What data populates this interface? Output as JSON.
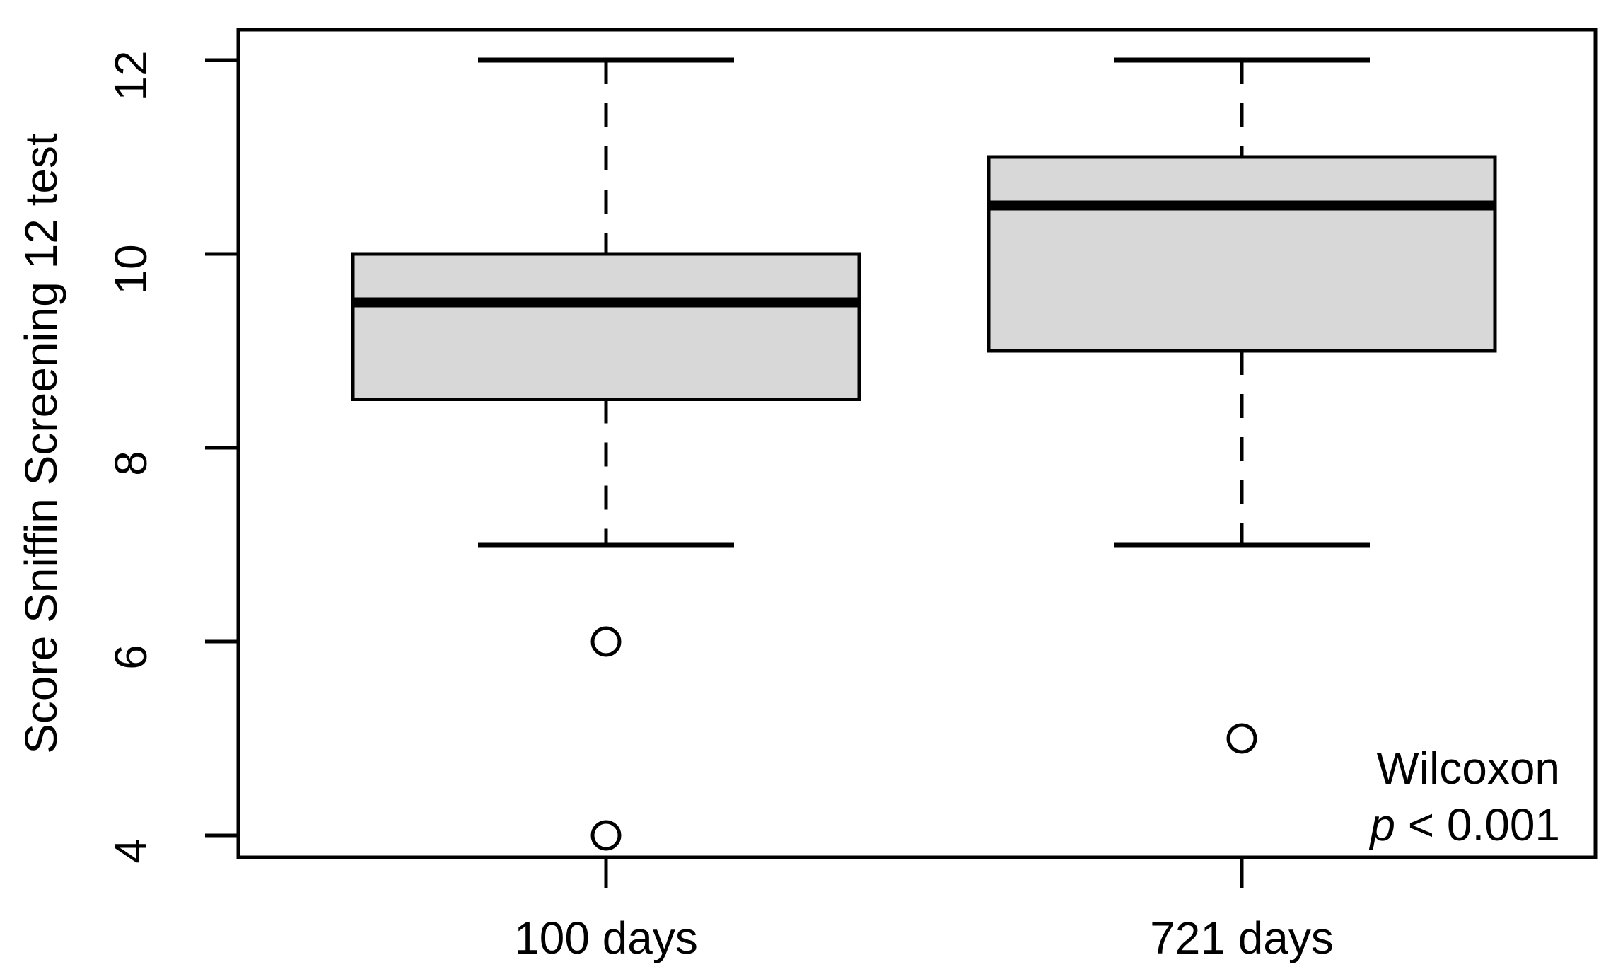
{
  "figure": {
    "background": "#ffffff",
    "ink_color": "#000000",
    "box_fill": "#d8d8d8"
  },
  "chart_data": {
    "type": "boxplot",
    "title": "",
    "xlabel": "",
    "ylabel": "Score Sniffin Screening 12 test",
    "categories": [
      "100 days",
      "721 days"
    ],
    "y_ticks": [
      "12",
      "10",
      "8",
      "6",
      "4"
    ],
    "y_tick_values": [
      12,
      10,
      8,
      6,
      4
    ],
    "ylim": [
      3.77,
      12.33
    ],
    "grid": "off",
    "legend": "none",
    "series": [
      {
        "label": "100 days",
        "whisker_low": 7,
        "q1": 8.5,
        "median": 9.5,
        "q3": 10,
        "whisker_high": 12,
        "outliers": [
          6,
          4
        ]
      },
      {
        "label": "721 days",
        "whisker_low": 7,
        "q1": 9,
        "median": 10.5,
        "q3": 11,
        "whisker_high": 12,
        "outliers": [
          5
        ]
      }
    ],
    "annotation": {
      "line1": "Wilcoxon",
      "line2_italic": "p",
      "line2_rest": " < 0.001",
      "position": "bottom-right"
    }
  }
}
